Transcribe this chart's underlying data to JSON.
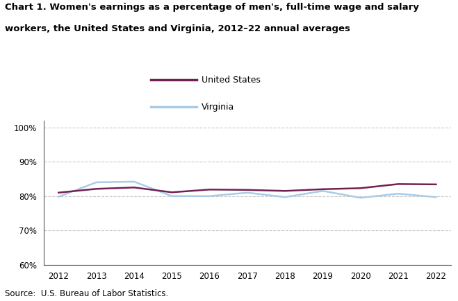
{
  "title_line1": "Chart 1. Women's earnings as a percentage of men's, full-time wage and salary",
  "title_line2": "workers, the United States and Virginia, 2012–22 annual averages",
  "years": [
    2012,
    2013,
    2014,
    2015,
    2016,
    2017,
    2018,
    2019,
    2020,
    2021,
    2022
  ],
  "us_values": [
    81.0,
    82.1,
    82.5,
    81.1,
    81.9,
    81.8,
    81.5,
    82.0,
    82.3,
    83.5,
    83.4
  ],
  "va_values": [
    79.8,
    84.0,
    84.2,
    80.0,
    80.0,
    81.0,
    79.7,
    81.5,
    79.5,
    80.7,
    79.7
  ],
  "us_color": "#722050",
  "va_color": "#a8cce8",
  "us_label": "United States",
  "va_label": "Virginia",
  "ylim": [
    60,
    102
  ],
  "yticks": [
    60,
    70,
    80,
    90,
    100
  ],
  "xlim": [
    2011.6,
    2022.4
  ],
  "source": "Source:  U.S. Bureau of Labor Statistics.",
  "background_color": "#ffffff",
  "grid_color": "#c8c8c8",
  "line_width": 1.8
}
